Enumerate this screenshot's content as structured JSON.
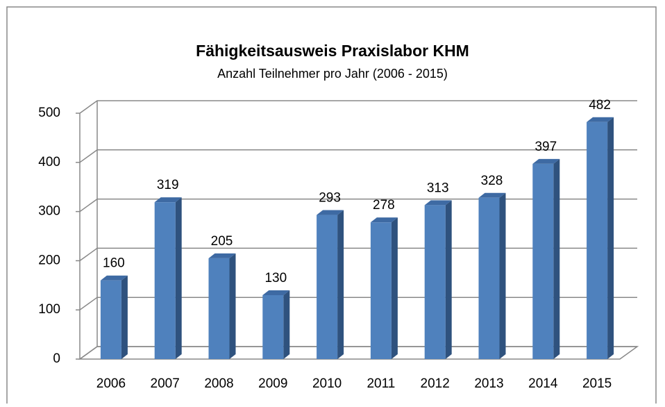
{
  "chart_data": {
    "type": "bar",
    "title": "Fähigkeitsausweis Praxislabor KHM",
    "subtitle": "Anzahl Teilnehmer pro Jahr (2006 - 2015)",
    "categories": [
      "2006",
      "2007",
      "2008",
      "2009",
      "2010",
      "2011",
      "2012",
      "2013",
      "2014",
      "2015"
    ],
    "values": [
      160,
      319,
      205,
      130,
      293,
      278,
      313,
      328,
      397,
      482
    ],
    "color": "#4f81bd",
    "ylim": [
      0,
      500
    ],
    "yticks": [
      0,
      100,
      200,
      300,
      400,
      500
    ],
    "grid": true
  }
}
